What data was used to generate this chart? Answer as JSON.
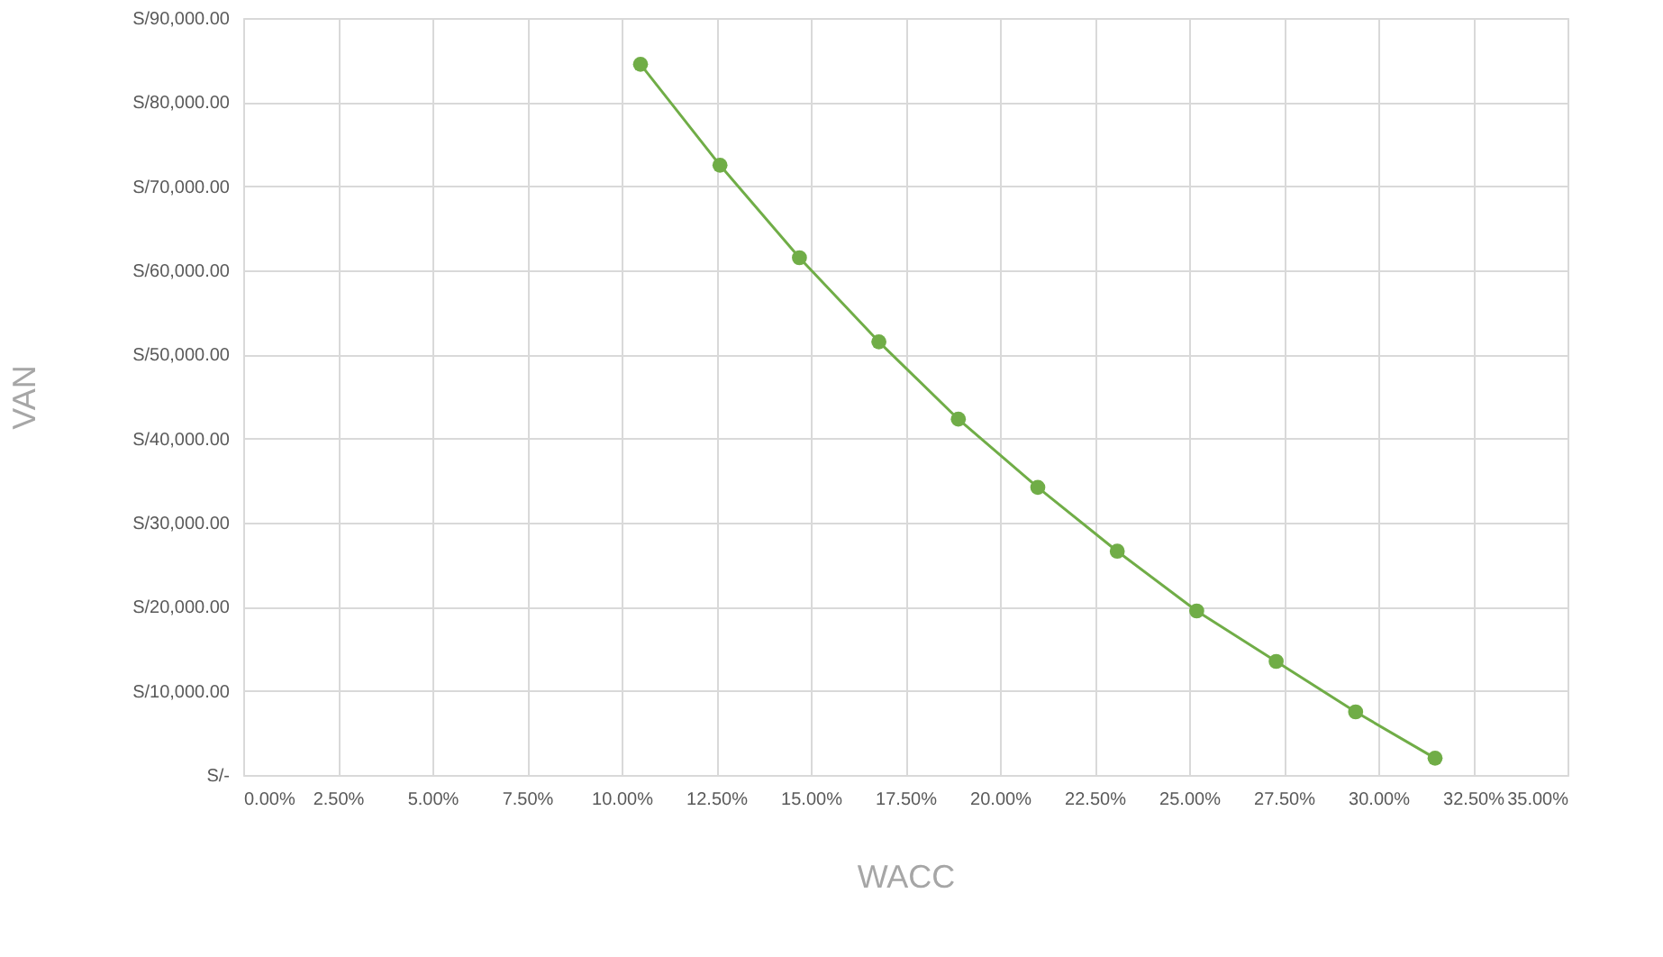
{
  "chart_data": {
    "type": "line",
    "xlabel": "WACC",
    "ylabel": "VAN",
    "x": [
      10.5,
      12.6,
      14.7,
      16.8,
      18.9,
      21.0,
      23.1,
      25.2,
      27.3,
      29.4,
      31.5
    ],
    "series": [
      {
        "color": "#70ad47",
        "values": [
          84500,
          72500,
          61500,
          51500,
          42300,
          34200,
          26600,
          19500,
          13500,
          7500,
          2000
        ]
      }
    ],
    "xlim": [
      0,
      35
    ],
    "xticks": [
      {
        "value": 0,
        "label": "0.00%"
      },
      {
        "value": 2.5,
        "label": "2.50%"
      },
      {
        "value": 5,
        "label": "5.00%"
      },
      {
        "value": 7.5,
        "label": "7.50%"
      },
      {
        "value": 10,
        "label": "10.00%"
      },
      {
        "value": 12.5,
        "label": "12.50%"
      },
      {
        "value": 15,
        "label": "15.00%"
      },
      {
        "value": 17.5,
        "label": "17.50%"
      },
      {
        "value": 20,
        "label": "20.00%"
      },
      {
        "value": 22.5,
        "label": "22.50%"
      },
      {
        "value": 25,
        "label": "25.00%"
      },
      {
        "value": 27.5,
        "label": "27.50%"
      },
      {
        "value": 30,
        "label": "30.00%"
      },
      {
        "value": 32.5,
        "label": "32.50%"
      },
      {
        "value": 35,
        "label": "35.00%"
      }
    ],
    "ylim": [
      0,
      90000
    ],
    "yticks": [
      {
        "value": 0,
        "label": "S/-"
      },
      {
        "value": 10000,
        "label": "S/10,000.00"
      },
      {
        "value": 20000,
        "label": "S/20,000.00"
      },
      {
        "value": 30000,
        "label": "S/30,000.00"
      },
      {
        "value": 40000,
        "label": "S/40,000.00"
      },
      {
        "value": 50000,
        "label": "S/50,000.00"
      },
      {
        "value": 60000,
        "label": "S/60,000.00"
      },
      {
        "value": 70000,
        "label": "S/70,000.00"
      },
      {
        "value": 80000,
        "label": "S/80,000.00"
      },
      {
        "value": 90000,
        "label": "S/90,000.00"
      }
    ],
    "grid": true,
    "marker": "circle",
    "line_style": "solid",
    "legend": false
  }
}
